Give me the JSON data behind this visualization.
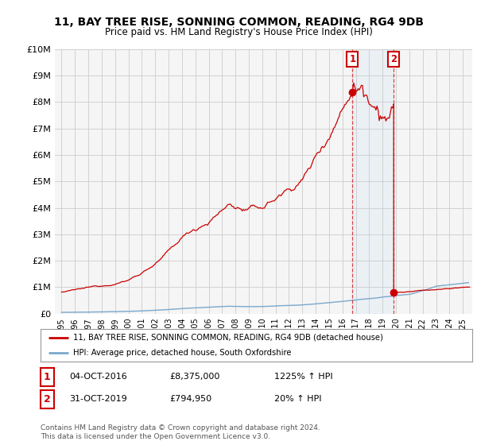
{
  "title": "11, BAY TREE RISE, SONNING COMMON, READING, RG4 9DB",
  "subtitle": "Price paid vs. HM Land Registry's House Price Index (HPI)",
  "ylim": [
    0,
    10000000
  ],
  "yticks": [
    0,
    1000000,
    2000000,
    3000000,
    4000000,
    5000000,
    6000000,
    7000000,
    8000000,
    9000000,
    10000000
  ],
  "ytick_labels": [
    "£0",
    "£1M",
    "£2M",
    "£3M",
    "£4M",
    "£5M",
    "£6M",
    "£7M",
    "£8M",
    "£9M",
    "£10M"
  ],
  "legend_line1": "11, BAY TREE RISE, SONNING COMMON, READING, RG4 9DB (detached house)",
  "legend_line2": "HPI: Average price, detached house, South Oxfordshire",
  "annotation1_date": "04-OCT-2016",
  "annotation1_price": "£8,375,000",
  "annotation1_hpi": "1225% ↑ HPI",
  "annotation2_date": "31-OCT-2019",
  "annotation2_price": "£794,950",
  "annotation2_hpi": "20% ↑ HPI",
  "point1_year": 2016.75,
  "point1_value": 8375000,
  "point2_year": 2019.83,
  "point2_value": 794950,
  "red_color": "#cc0000",
  "blue_color": "#7aa8cc",
  "vline_color": "#cc0000",
  "shade_color": "#d0e4f7",
  "footer": "Contains HM Land Registry data © Crown copyright and database right 2024.\nThis data is licensed under the Open Government Licence v3.0.",
  "bg_color": "#ffffff",
  "plot_bg_color": "#f5f5f5"
}
